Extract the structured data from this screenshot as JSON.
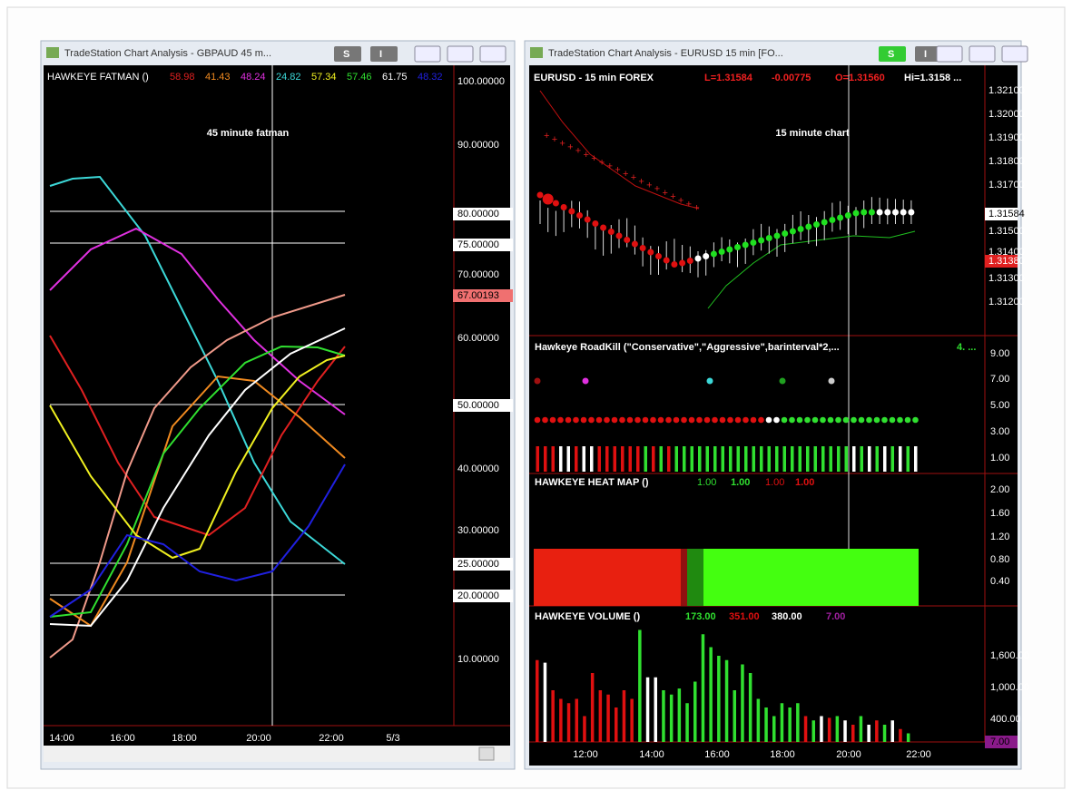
{
  "windows": [
    {
      "title": "TradeStation Chart Analysis - GBPAUD 45 m...",
      "buttons": [
        "S",
        "I"
      ],
      "indicator": {
        "name": "HAWKEYE FATMAN ()",
        "values": [
          "58.98",
          "41.43",
          "48.24",
          "24.82",
          "57.34",
          "57.46",
          "61.75",
          "48.32"
        ]
      },
      "overlay": "45 minute fatman",
      "price_axis": [
        "100.00000",
        "90.00000",
        "80.00000",
        "75.00000",
        "70.00000",
        "67.00193",
        "60.00000",
        "50.00000",
        "40.00000",
        "30.00000",
        "25.00000",
        "20.00000",
        "10.00000"
      ],
      "time_axis": [
        "14:00",
        "16:00",
        "18:00",
        "20:00",
        "22:00",
        "5/3"
      ]
    },
    {
      "title": "TradeStation Chart Analysis - EURUSD 15 min [FO...",
      "buttons": [
        "S",
        "I"
      ],
      "symbol": "EURUSD - 15 min  FOREX",
      "quote": [
        "L=1.31584",
        "-0.00775",
        "O=1.31560",
        "Hi=1.3158 ..."
      ],
      "overlay": "15 minute chart",
      "price_axis": [
        "1.32100",
        "1.32000",
        "1.31900",
        "1.31800",
        "1.31700",
        "1.31584",
        "1.31500",
        "1.31400",
        "1.31380",
        "1.31300",
        "1.31200"
      ],
      "roadkill": {
        "name": "Hawkeye RoadKill (\"Conservative\",\"Aggressive\",barinterval*2,...",
        "values": [
          "4. ..."
        ],
        "axis": [
          "9.00",
          "7.00",
          "5.00",
          "3.00",
          "1.00"
        ]
      },
      "heat_map": {
        "name": "HAWKEYE HEAT MAP ()",
        "values": [
          "1.00",
          "1.00",
          "1.00",
          "1.00"
        ],
        "axis": [
          "2.00",
          "1.60",
          "1.20",
          "0.80",
          "0.40"
        ]
      },
      "volume": {
        "name": "HAWKEYE VOLUME ()",
        "values": [
          "173.00",
          "351.00",
          "380.00",
          "7.00"
        ],
        "axis": [
          "1,600.00",
          "1,000.00",
          "400.00",
          "7.00"
        ]
      },
      "time_axis": [
        "12:00",
        "14:00",
        "16:00",
        "18:00",
        "20:00",
        "22:00"
      ]
    }
  ]
}
